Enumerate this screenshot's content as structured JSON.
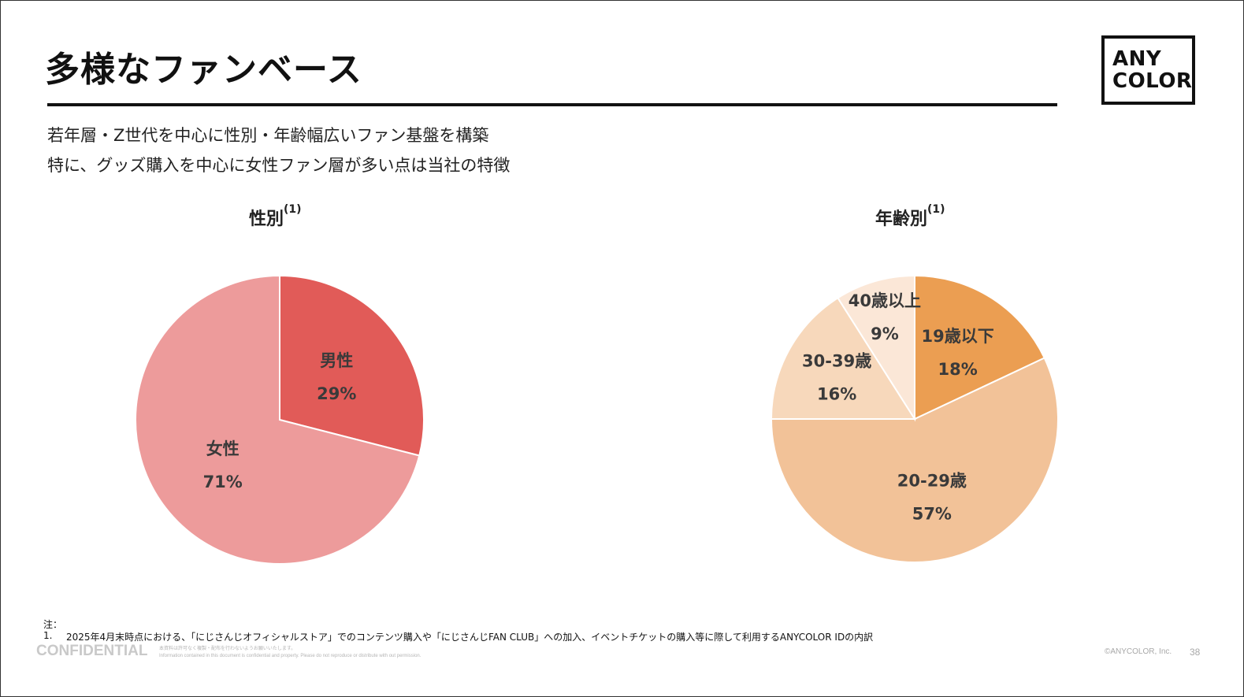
{
  "header": {
    "title": "多様なファンベース"
  },
  "logo": {
    "line1": "ANY",
    "line2": "COLOR"
  },
  "subtitle": {
    "line1": "若年層・Z世代を中心に性別・年齢幅広いファン基盤を構築",
    "line2": "特に、グッズ購入を中心に女性ファン層が多い点は当社の特徴"
  },
  "chart_data": [
    {
      "type": "pie",
      "title": "性別",
      "title_note": "(1)",
      "categories": [
        "男性",
        "女性"
      ],
      "values": [
        29,
        71
      ],
      "value_labels": [
        "29%",
        "71%"
      ],
      "colors": [
        "#e15b58",
        "#ed9b9b"
      ],
      "start": "12 o'clock, clockwise"
    },
    {
      "type": "pie",
      "title": "年齢別",
      "title_note": "(1)",
      "categories": [
        "19歳以下",
        "20-29歳",
        "30-39歳",
        "40歳以上"
      ],
      "values": [
        18,
        57,
        16,
        9
      ],
      "value_labels": [
        "18%",
        "57%",
        "16%",
        "9%"
      ],
      "colors": [
        "#eb9e52",
        "#f2c298",
        "#f7d8bb",
        "#fbe7d7"
      ],
      "start": "12 o'clock, clockwise"
    }
  ],
  "notes": {
    "heading": "注：",
    "items": [
      {
        "num": "1.",
        "text": "2025年4月末時点における、「にじさんじオフィシャルストア」でのコンテンツ購入や「にじさんじFAN CLUB」への加入、イベントチケットの購入等に際して利用するANYCOLOR IDの内訳"
      }
    ]
  },
  "footer": {
    "confidential": "CONFIDENTIAL",
    "fine1": "本資料は許可なく複製・配布を行わないようお願いいたします。",
    "fine2": "Information contained in this document is confidential and property. Please do not reproduce or distribute with out permission.",
    "copyright": "©ANYCOLOR, Inc.",
    "page": "38"
  }
}
